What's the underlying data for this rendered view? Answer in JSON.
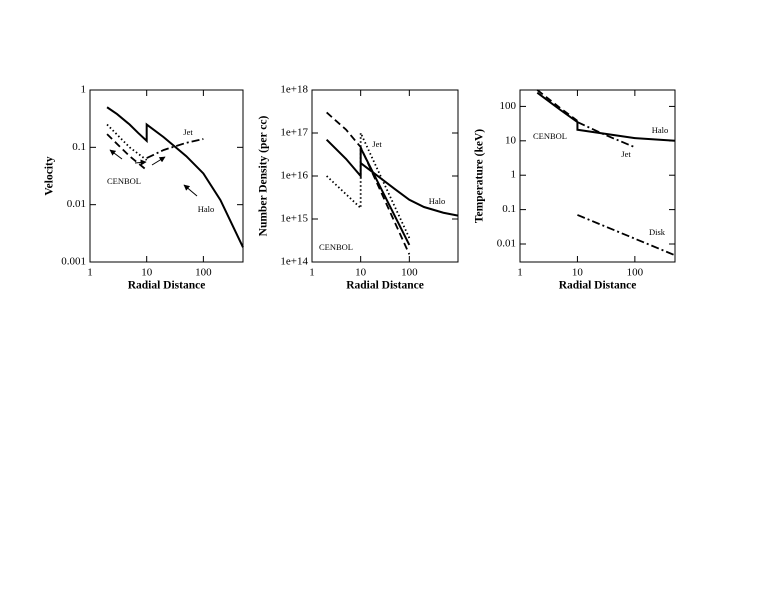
{
  "chart_data": [
    {
      "type": "line",
      "log_x": true,
      "log_y": true,
      "x_label": "Radial Distance",
      "y_label": "Velocity",
      "xlim": [
        1,
        500
      ],
      "xticks": [
        1,
        10,
        100
      ],
      "ylim": [
        0.001,
        1
      ],
      "yticks": [
        0.001,
        0.01,
        0.1,
        1
      ],
      "annotations": [
        "Jet",
        "CENBOL",
        "Halo"
      ],
      "series": [
        {
          "color": "#000000",
          "dash": "solid",
          "x": [
            2,
            3,
            5,
            7,
            10,
            10,
            20,
            50,
            100,
            200,
            500
          ],
          "values": [
            0.5,
            0.38,
            0.25,
            0.18,
            0.13,
            0.25,
            0.15,
            0.07,
            0.035,
            0.012,
            0.0018
          ]
        },
        {
          "color": "#000000",
          "dash": "dotted",
          "x": [
            2,
            5,
            10
          ],
          "values": [
            0.25,
            0.1,
            0.06
          ]
        },
        {
          "color": "#000000",
          "dash": "dashed",
          "x": [
            2,
            5,
            10
          ],
          "values": [
            0.17,
            0.07,
            0.04
          ]
        },
        {
          "color": "#000000",
          "dash": "dashdot",
          "x": [
            10,
            20,
            50,
            100
          ],
          "values": [
            0.065,
            0.09,
            0.12,
            0.14
          ]
        }
      ]
    },
    {
      "type": "line",
      "log_x": true,
      "log_y": true,
      "x_label": "Radial Distance",
      "y_label": "Number Density (per cc)",
      "xlim": [
        1,
        1000
      ],
      "xticks": [
        1,
        10,
        100
      ],
      "ylim": [
        100000000000000.0,
        1e+18
      ],
      "yticks": [
        {
          "value": 100000000000000.0,
          "label": "1e+14"
        },
        {
          "value": 1000000000000000.0,
          "label": "1e+15"
        },
        {
          "value": 1e+16,
          "label": "1e+16"
        },
        {
          "value": 1e+17,
          "label": "1e+17"
        },
        {
          "value": 1e+18,
          "label": "1e+18"
        }
      ],
      "annotations": [
        "Jet",
        "Halo",
        "CENBOL"
      ],
      "series": [
        {
          "color": "#000000",
          "dash": "solid",
          "x": [
            2,
            5,
            10,
            10,
            100
          ],
          "values": [
            7e+16,
            2.5e+16,
            1e+16,
            4.5e+16,
            250000000000000.0
          ]
        },
        {
          "color": "#000000",
          "dash": "solid",
          "x": [
            10,
            20,
            50,
            100,
            200,
            500,
            1000
          ],
          "values": [
            2e+16,
            1.1e+16,
            5000000000000000.0,
            2800000000000000.0,
            1900000000000000.0,
            1400000000000000.0,
            1200000000000000.0
          ]
        },
        {
          "color": "#000000",
          "dash": "dashed",
          "x": [
            2,
            5,
            10,
            100
          ],
          "values": [
            3e+17,
            1.2e+17,
            4.7e+16,
            150000000000000.0
          ]
        },
        {
          "color": "#000000",
          "dash": "dotted",
          "x": [
            2,
            10,
            10,
            100
          ],
          "values": [
            1e+16,
            1800000000000000.0,
            1e+17,
            360000000000000.0
          ]
        }
      ]
    },
    {
      "type": "line",
      "log_x": true,
      "log_y": true,
      "x_label": "Radial Distance",
      "y_label": "Temperature (keV)",
      "xlim": [
        1,
        500
      ],
      "xticks": [
        1,
        10,
        100
      ],
      "ylim": [
        0.003,
        300
      ],
      "yticks": [
        0.01,
        0.1,
        1,
        10,
        100
      ],
      "annotations": [
        "CENBOL",
        "Halo",
        "Jet",
        "Disk"
      ],
      "series": [
        {
          "color": "#000000",
          "dash": "solid",
          "x": [
            2,
            5,
            10,
            10,
            30,
            100,
            500
          ],
          "values": [
            250,
            80,
            35,
            21,
            16,
            12,
            10
          ]
        },
        {
          "color": "#000000",
          "dash": "dashed",
          "x": [
            2,
            5,
            10
          ],
          "values": [
            300,
            90,
            38
          ]
        },
        {
          "color": "#000000",
          "dash": "dashdot",
          "x": [
            10,
            30,
            100
          ],
          "values": [
            35,
            15,
            6.5
          ]
        },
        {
          "color": "#000000",
          "dash": "dashdot",
          "x": [
            10,
            500
          ],
          "values": [
            0.07,
            0.0047
          ]
        }
      ]
    }
  ]
}
